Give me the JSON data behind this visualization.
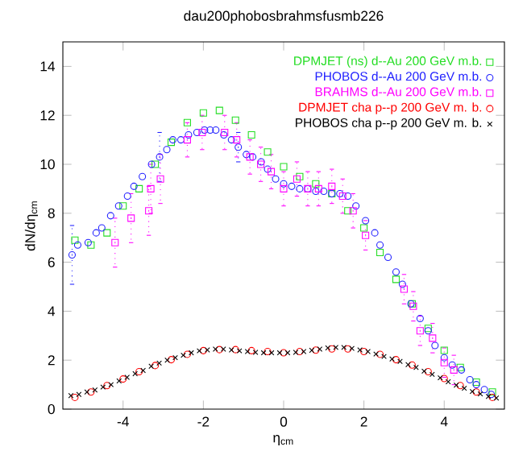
{
  "chart_data": {
    "type": "scatter",
    "title": "dau200phobosbrahmsfusmb226",
    "xlabel": "η$_{cm}$",
    "ylabel": "dN/dη$_{cm}$",
    "xlim": [
      -5.5,
      5.5
    ],
    "ylim": [
      0,
      15
    ],
    "xticks": [
      -4,
      -2,
      0,
      2,
      4
    ],
    "yticks": [
      0,
      2,
      4,
      6,
      8,
      10,
      12,
      14
    ],
    "legend": "top right",
    "series": [
      {
        "name": "DPMJET (ns)  d--Au 200 GeV m.b.",
        "color": "#22dd22",
        "marker": "square",
        "x": [
          -5.2,
          -4.8,
          -4.4,
          -4.0,
          -3.6,
          -3.2,
          -2.8,
          -2.4,
          -2.0,
          -1.6,
          -1.2,
          -0.8,
          -0.4,
          0.0,
          0.4,
          0.8,
          1.2,
          1.6,
          2.0,
          2.4,
          2.8,
          3.2,
          3.6,
          4.0,
          4.4,
          4.8,
          5.2
        ],
        "values": [
          6.9,
          6.7,
          7.2,
          8.3,
          9.0,
          10.0,
          10.9,
          11.7,
          12.1,
          12.2,
          11.8,
          11.2,
          10.5,
          9.9,
          9.5,
          9.2,
          8.8,
          8.1,
          7.4,
          6.4,
          5.3,
          4.3,
          3.3,
          2.4,
          1.7,
          1.1,
          0.7
        ]
      },
      {
        "name": "PHOBOS  d--Au 200 GeV m.b.",
        "color": "#2020ff",
        "marker": "circle",
        "x": [
          -5.27,
          -5.13,
          -4.87,
          -4.67,
          -4.53,
          -4.31,
          -4.11,
          -3.89,
          -3.73,
          -3.52,
          -3.29,
          -3.09,
          -2.91,
          -2.76,
          -2.56,
          -2.37,
          -2.16,
          -1.97,
          -1.83,
          -1.69,
          -1.49,
          -1.3,
          -1.13,
          -0.93,
          -0.77,
          -0.56,
          -0.4,
          -0.2,
          0.0,
          0.2,
          0.4,
          0.6,
          0.8,
          1.0,
          1.2,
          1.4,
          1.6,
          1.8,
          2.04,
          2.27,
          2.4,
          2.6,
          2.8,
          2.96,
          3.17,
          3.4,
          3.6,
          3.77,
          4.0,
          4.2,
          4.43,
          4.64,
          4.8,
          5.0,
          5.17
        ],
        "values": [
          6.3,
          6.7,
          6.8,
          7.2,
          7.4,
          7.9,
          8.3,
          8.7,
          9.1,
          9.5,
          10.0,
          10.3,
          10.6,
          11.0,
          11.0,
          11.2,
          11.3,
          11.4,
          11.4,
          11.4,
          11.2,
          11.0,
          10.7,
          10.4,
          10.3,
          10.1,
          9.8,
          9.4,
          9.2,
          9.1,
          9.0,
          9.0,
          8.9,
          8.9,
          8.8,
          8.8,
          8.7,
          8.3,
          7.7,
          7.2,
          6.7,
          6.2,
          5.6,
          5.1,
          4.3,
          3.7,
          3.2,
          2.6,
          2.1,
          1.8,
          1.6,
          1.2,
          1.0,
          0.8,
          0.6
        ],
        "errors": [
          1.2,
          null,
          null,
          null,
          null,
          null,
          null,
          null,
          null,
          null,
          null,
          1.0,
          null,
          null,
          null,
          null,
          null,
          null,
          null,
          null,
          null,
          null,
          0.6,
          null,
          null,
          null,
          null,
          null,
          null,
          null,
          null,
          null,
          null,
          null,
          null,
          null,
          null,
          null,
          null,
          null,
          null,
          null,
          null,
          null,
          null,
          null,
          null,
          null,
          null,
          null,
          null,
          null,
          null,
          null,
          null
        ]
      },
      {
        "name": "BRAHMS  d--Au 200 GeV m.b.",
        "color": "#ff00ff",
        "marker": "square",
        "x": [
          -4.2,
          -3.8,
          -3.36,
          -3.31,
          -3.07,
          -2.4,
          -2.03,
          -1.47,
          -1.17,
          -0.84,
          -0.57,
          -0.31,
          0.0,
          0.33,
          0.6,
          0.87,
          1.2,
          1.47,
          1.73,
          2.04,
          3.0,
          3.23,
          3.4,
          3.71,
          4.0,
          4.24
        ],
        "values": [
          6.8,
          7.8,
          8.1,
          9.0,
          9.4,
          11.0,
          11.3,
          11.3,
          11.0,
          10.3,
          10.0,
          9.7,
          9.0,
          9.4,
          9.0,
          9.0,
          9.1,
          8.7,
          8.1,
          7.1,
          4.9,
          4.2,
          3.2,
          2.9,
          1.9,
          1.6
        ],
        "errors": [
          1.0,
          1.0,
          1.0,
          1.0,
          1.0,
          0.7,
          0.7,
          0.7,
          0.7,
          0.7,
          0.7,
          0.7,
          0.7,
          0.7,
          0.7,
          0.7,
          0.7,
          0.7,
          0.7,
          0.6,
          0.6,
          0.6,
          0.6,
          0.6,
          0.6,
          0.6
        ]
      },
      {
        "name": "DPMJET cha p--p 200 GeV        m. b.",
        "color": "#ff0000",
        "marker": "circle",
        "x": [
          -5.2,
          -4.8,
          -4.4,
          -4.0,
          -3.6,
          -3.2,
          -2.8,
          -2.4,
          -2.0,
          -1.6,
          -1.2,
          -0.8,
          -0.4,
          0.0,
          0.4,
          0.8,
          1.2,
          1.6,
          2.0,
          2.4,
          2.8,
          3.2,
          3.6,
          4.0,
          4.4,
          4.8,
          5.2
        ],
        "values": [
          0.48,
          0.7,
          0.96,
          1.23,
          1.53,
          1.78,
          2.02,
          2.24,
          2.39,
          2.43,
          2.43,
          2.39,
          2.35,
          2.3,
          2.35,
          2.41,
          2.46,
          2.46,
          2.35,
          2.24,
          2.02,
          1.8,
          1.53,
          1.25,
          0.96,
          0.7,
          0.48
        ]
      },
      {
        "name": "PHOBOS cha p--p 200 GeV m. b.",
        "color": "#000000",
        "marker": "cross",
        "x": [
          -5.3,
          -5.1,
          -4.9,
          -4.7,
          -4.5,
          -4.3,
          -4.1,
          -3.9,
          -3.7,
          -3.5,
          -3.3,
          -3.1,
          -2.9,
          -2.7,
          -2.5,
          -2.3,
          -2.1,
          -1.9,
          -1.7,
          -1.5,
          -1.3,
          -1.1,
          -0.9,
          -0.7,
          -0.5,
          -0.3,
          -0.1,
          0.1,
          0.3,
          0.5,
          0.7,
          0.9,
          1.1,
          1.3,
          1.5,
          1.7,
          1.9,
          2.1,
          2.3,
          2.5,
          2.7,
          2.9,
          3.1,
          3.3,
          3.5,
          3.7,
          3.9,
          4.1,
          4.3,
          4.5,
          4.7,
          4.9,
          5.1,
          5.3
        ],
        "values": [
          0.55,
          0.6,
          0.7,
          0.78,
          0.9,
          1.0,
          1.15,
          1.3,
          1.45,
          1.58,
          1.75,
          1.88,
          2.0,
          2.1,
          2.2,
          2.3,
          2.38,
          2.42,
          2.45,
          2.45,
          2.42,
          2.38,
          2.35,
          2.32,
          2.3,
          2.3,
          2.3,
          2.3,
          2.32,
          2.35,
          2.4,
          2.45,
          2.5,
          2.52,
          2.52,
          2.48,
          2.42,
          2.35,
          2.25,
          2.15,
          2.05,
          1.95,
          1.82,
          1.7,
          1.55,
          1.42,
          1.28,
          1.12,
          0.98,
          0.85,
          0.72,
          0.62,
          0.52,
          0.45
        ]
      }
    ]
  }
}
